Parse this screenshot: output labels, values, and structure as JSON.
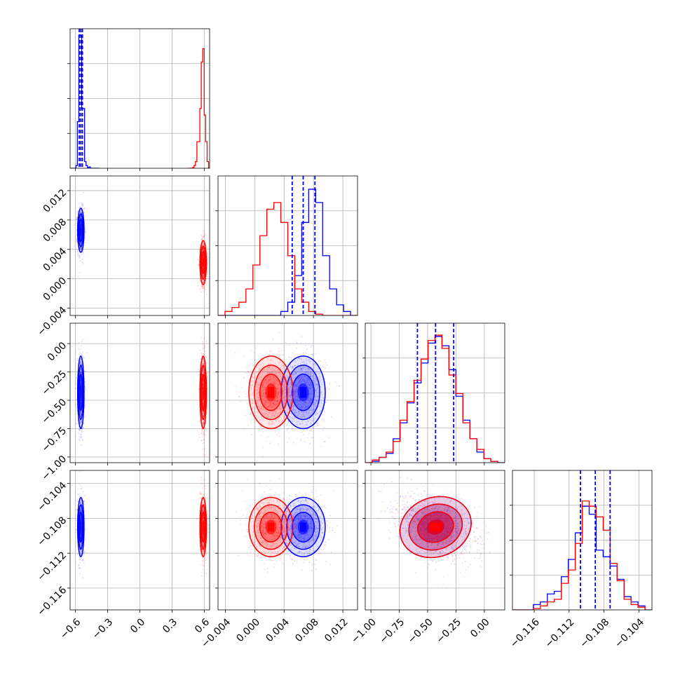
{
  "chart_data": {
    "type": "scatter",
    "title": "",
    "parameters": [
      {
        "label": "",
        "range": [
          -0.65,
          0.65
        ],
        "ticks": [
          "-0.6",
          "-0.3",
          "0.0",
          "0.3",
          "0.6"
        ],
        "tick_values": [
          -0.6,
          -0.3,
          0.0,
          0.3,
          0.6
        ]
      },
      {
        "label": "",
        "range": [
          -0.005,
          0.014
        ],
        "ticks": [
          "-0.004",
          "0.000",
          "0.004",
          "0.008",
          "0.012"
        ],
        "tick_values": [
          -0.004,
          0.0,
          0.004,
          0.008,
          0.012
        ]
      },
      {
        "label": "",
        "range": [
          -1.05,
          0.18
        ],
        "ticks": [
          "-1.00",
          "-0.75",
          "-0.50",
          "-0.25",
          "0.00"
        ],
        "tick_values": [
          -1.0,
          -0.75,
          -0.5,
          -0.25,
          0.0
        ]
      },
      {
        "label": "",
        "range": [
          -0.1185,
          -0.1025
        ],
        "ticks": [
          "-0.116",
          "-0.112",
          "-0.108",
          "-0.104"
        ],
        "tick_values": [
          -0.116,
          -0.112,
          -0.108,
          -0.104
        ]
      }
    ],
    "series": [
      {
        "color": "#0000ff",
        "means": [
          -0.55,
          0.0066,
          -0.43,
          -0.109
        ],
        "sds": [
          0.015,
          0.0015,
          0.16,
          0.0017
        ]
      },
      {
        "color": "#ff0000",
        "means": [
          0.59,
          0.0022,
          -0.43,
          -0.109
        ],
        "sds": [
          0.015,
          0.0015,
          0.16,
          0.0017
        ]
      }
    ],
    "quantile_lines": {
      "color": "#0000ff",
      "values": [
        [
          -0.565,
          -0.55,
          -0.535
        ],
        [
          0.0051,
          0.0066,
          0.0082
        ],
        [
          -0.59,
          -0.43,
          -0.27
        ],
        [
          -0.1107,
          -0.109,
          -0.1073
        ]
      ]
    },
    "histograms": [
      {
        "edges": [
          -0.65,
          -0.6365,
          -0.623,
          -0.6095,
          -0.596,
          -0.5825,
          -0.569,
          -0.5555,
          -0.542,
          -0.5285,
          -0.515,
          -0.5015,
          -0.488,
          -0.4745,
          -0.461,
          -0.4475,
          -0.434,
          -0.4205,
          -0.407,
          -0.3935,
          -0.38
        ],
        "blue": [
          0,
          0,
          0,
          0,
          0.02,
          0.35,
          1,
          1,
          0.45,
          0.45,
          0.05,
          0.02,
          0.005,
          0.01,
          0,
          0,
          0,
          0,
          0,
          0
        ],
        "red_edges": [
          0.45,
          0.4636,
          0.4772,
          0.4908,
          0.5044,
          0.518,
          0.5316,
          0.5452,
          0.5588,
          0.5724,
          0.586,
          0.5996,
          0.6132,
          0.6268,
          0.6404,
          0.654
        ],
        "red": [
          0,
          0,
          0,
          0.005,
          0.02,
          0.05,
          0.2,
          0.2,
          0.45,
          0.8,
          0.9,
          0.4,
          0.2,
          0.05,
          0
        ]
      },
      {
        "edges": [
          -0.005,
          -0.00405,
          -0.0031,
          -0.00215,
          -0.0012,
          -0.00025,
          0.0007,
          0.00165,
          0.0026,
          0.00355,
          0.0045,
          0.00545,
          0.0064,
          0.00735,
          0.0083,
          0.00925,
          0.0102,
          0.01115,
          0.0121,
          0.01305,
          0.014
        ],
        "blue": [
          0,
          0,
          0,
          0,
          0,
          0,
          0,
          0,
          0,
          0.03,
          0.1,
          0.3,
          0.7,
          0.95,
          0.85,
          0.45,
          0.2,
          0.08,
          0.03,
          0
        ],
        "red": [
          0,
          0.03,
          0.06,
          0.1,
          0.2,
          0.38,
          0.6,
          0.8,
          0.85,
          0.7,
          0.45,
          0.2,
          0.1,
          0.03,
          0.01,
          0,
          0,
          0,
          0,
          0
        ]
      },
      {
        "edges": [
          -1.05,
          -0.9885,
          -0.927,
          -0.8655,
          -0.804,
          -0.7425,
          -0.681,
          -0.6195,
          -0.558,
          -0.4965,
          -0.435,
          -0.3735,
          -0.312,
          -0.2505,
          -0.189,
          -0.1275,
          -0.066,
          -0.0045,
          0.057,
          0.1185,
          0.18
        ],
        "blue": [
          0,
          0.01,
          0.04,
          0.07,
          0.18,
          0.3,
          0.45,
          0.6,
          0.75,
          0.9,
          0.95,
          0.88,
          0.7,
          0.5,
          0.32,
          0.18,
          0.08,
          0.03,
          0.01,
          0
        ],
        "red": [
          0,
          0.02,
          0.04,
          0.08,
          0.16,
          0.32,
          0.46,
          0.62,
          0.78,
          0.92,
          0.96,
          0.86,
          0.66,
          0.52,
          0.3,
          0.18,
          0.1,
          0.03,
          0.01,
          0
        ]
      },
      {
        "edges": [
          -0.1185,
          -0.1177,
          -0.1169,
          -0.1161,
          -0.1153,
          -0.1145,
          -0.1137,
          -0.1129,
          -0.1121,
          -0.1113,
          -0.1105,
          -0.1097,
          -0.1089,
          -0.1081,
          -0.1073,
          -0.1065,
          -0.1057,
          -0.1049,
          -0.1041,
          -0.1033,
          -0.1025
        ],
        "blue": [
          0,
          0,
          0,
          0.04,
          0.06,
          0.12,
          0.14,
          0.25,
          0.38,
          0.58,
          0.78,
          0.72,
          0.45,
          0.4,
          0.33,
          0.23,
          0.1,
          0.06,
          0.03,
          0
        ],
        "red": [
          0,
          0,
          0,
          0.01,
          0.03,
          0.06,
          0.08,
          0.2,
          0.3,
          0.5,
          0.82,
          0.78,
          0.7,
          0.6,
          0.35,
          0.22,
          0.08,
          0.04,
          0.02,
          0
        ]
      }
    ],
    "grid": true,
    "legend": "none"
  }
}
